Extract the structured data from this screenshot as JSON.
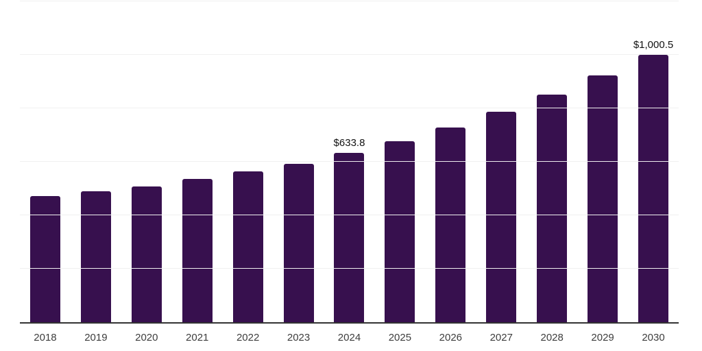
{
  "chart_data": {
    "type": "bar",
    "title": "",
    "xlabel": "",
    "ylabel": "",
    "categories": [
      "2018",
      "2019",
      "2020",
      "2021",
      "2022",
      "2023",
      "2024",
      "2025",
      "2026",
      "2027",
      "2028",
      "2029",
      "2030"
    ],
    "values": [
      470.9,
      488.7,
      507.9,
      534.7,
      562.9,
      592.8,
      633.8,
      676.4,
      728.0,
      786.3,
      851.2,
      922.9,
      1000.5
    ],
    "labeled_points": [
      {
        "category": "2024",
        "label": "$633.8"
      },
      {
        "category": "2030",
        "label": "$1,000.5"
      }
    ],
    "ylim": [
      0,
      1200
    ],
    "gridline_values": [
      200,
      400,
      600,
      800,
      1000,
      1200
    ],
    "grid": "horizontal",
    "legend_position": "none",
    "y_axis_tick_labels_visible": false,
    "colors": {
      "bar": "#37104e",
      "gridline": "#f0f0f0",
      "axis": "#333333",
      "tick_label": "#3d3d3d",
      "data_label": "#111111",
      "background": "#ffffff"
    }
  }
}
